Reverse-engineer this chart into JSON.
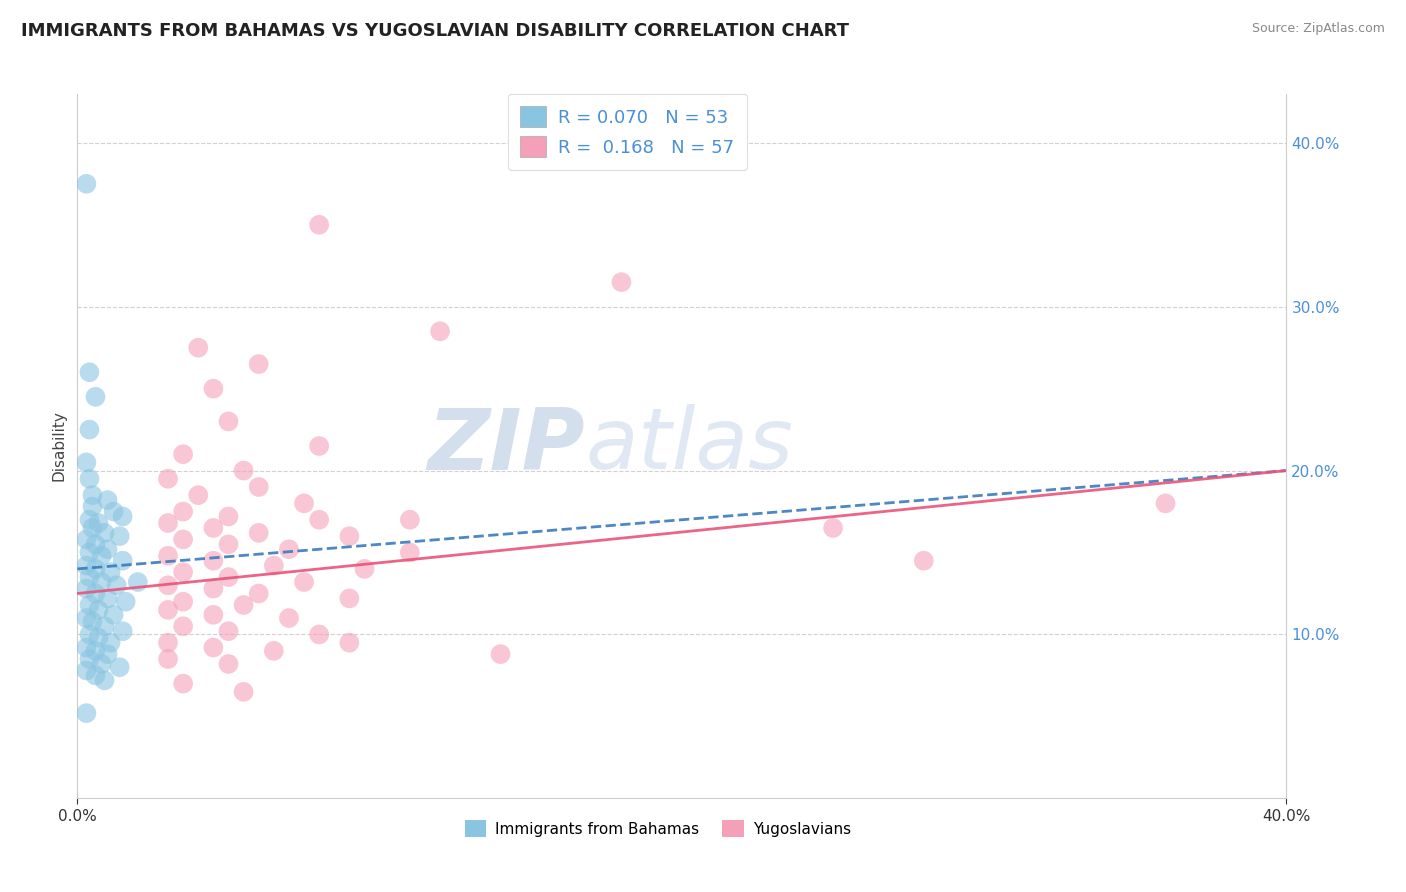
{
  "title": "IMMIGRANTS FROM BAHAMAS VS YUGOSLAVIAN DISABILITY CORRELATION CHART",
  "source": "Source: ZipAtlas.com",
  "ylabel": "Disability",
  "r1": 0.07,
  "n1": 53,
  "r2": 0.168,
  "n2": 57,
  "color_blue": "#89c4e1",
  "color_pink": "#f4a0b8",
  "color_blue_line": "#3a7abf",
  "color_pink_line": "#e8547a",
  "legend_label1": "Immigrants from Bahamas",
  "legend_label2": "Yugoslavians",
  "watermark_zip": "ZIP",
  "watermark_atlas": "atlas",
  "blue_dots": [
    [
      0.3,
      37.5
    ],
    [
      0.4,
      26.0
    ],
    [
      0.6,
      24.5
    ],
    [
      0.4,
      22.5
    ],
    [
      0.3,
      20.5
    ],
    [
      0.4,
      19.5
    ],
    [
      0.5,
      18.5
    ],
    [
      1.0,
      18.2
    ],
    [
      0.5,
      17.8
    ],
    [
      1.2,
      17.5
    ],
    [
      1.5,
      17.2
    ],
    [
      0.4,
      17.0
    ],
    [
      0.7,
      16.8
    ],
    [
      0.5,
      16.5
    ],
    [
      0.9,
      16.2
    ],
    [
      1.4,
      16.0
    ],
    [
      0.3,
      15.8
    ],
    [
      0.6,
      15.5
    ],
    [
      1.0,
      15.2
    ],
    [
      0.4,
      15.0
    ],
    [
      0.8,
      14.8
    ],
    [
      1.5,
      14.5
    ],
    [
      0.3,
      14.2
    ],
    [
      0.6,
      14.0
    ],
    [
      1.1,
      13.8
    ],
    [
      0.4,
      13.5
    ],
    [
      0.8,
      13.2
    ],
    [
      1.3,
      13.0
    ],
    [
      2.0,
      13.2
    ],
    [
      0.3,
      12.8
    ],
    [
      0.6,
      12.5
    ],
    [
      1.0,
      12.2
    ],
    [
      1.6,
      12.0
    ],
    [
      0.4,
      11.8
    ],
    [
      0.7,
      11.5
    ],
    [
      1.2,
      11.2
    ],
    [
      0.3,
      11.0
    ],
    [
      0.5,
      10.8
    ],
    [
      0.9,
      10.5
    ],
    [
      1.5,
      10.2
    ],
    [
      0.4,
      10.0
    ],
    [
      0.7,
      9.8
    ],
    [
      1.1,
      9.5
    ],
    [
      0.3,
      9.2
    ],
    [
      0.6,
      9.0
    ],
    [
      1.0,
      8.8
    ],
    [
      0.4,
      8.5
    ],
    [
      0.8,
      8.2
    ],
    [
      1.4,
      8.0
    ],
    [
      0.3,
      7.8
    ],
    [
      0.6,
      7.5
    ],
    [
      0.9,
      7.2
    ],
    [
      0.3,
      5.2
    ]
  ],
  "pink_dots": [
    [
      8.0,
      35.0
    ],
    [
      12.0,
      28.5
    ],
    [
      18.0,
      31.5
    ],
    [
      4.0,
      27.5
    ],
    [
      6.0,
      26.5
    ],
    [
      4.5,
      25.0
    ],
    [
      5.0,
      23.0
    ],
    [
      8.0,
      21.5
    ],
    [
      3.5,
      21.0
    ],
    [
      5.5,
      20.0
    ],
    [
      3.0,
      19.5
    ],
    [
      6.0,
      19.0
    ],
    [
      4.0,
      18.5
    ],
    [
      7.5,
      18.0
    ],
    [
      3.5,
      17.5
    ],
    [
      5.0,
      17.2
    ],
    [
      8.0,
      17.0
    ],
    [
      11.0,
      17.0
    ],
    [
      3.0,
      16.8
    ],
    [
      4.5,
      16.5
    ],
    [
      6.0,
      16.2
    ],
    [
      9.0,
      16.0
    ],
    [
      3.5,
      15.8
    ],
    [
      5.0,
      15.5
    ],
    [
      7.0,
      15.2
    ],
    [
      11.0,
      15.0
    ],
    [
      3.0,
      14.8
    ],
    [
      4.5,
      14.5
    ],
    [
      6.5,
      14.2
    ],
    [
      9.5,
      14.0
    ],
    [
      3.5,
      13.8
    ],
    [
      5.0,
      13.5
    ],
    [
      7.5,
      13.2
    ],
    [
      3.0,
      13.0
    ],
    [
      4.5,
      12.8
    ],
    [
      6.0,
      12.5
    ],
    [
      9.0,
      12.2
    ],
    [
      3.5,
      12.0
    ],
    [
      5.5,
      11.8
    ],
    [
      3.0,
      11.5
    ],
    [
      4.5,
      11.2
    ],
    [
      7.0,
      11.0
    ],
    [
      3.5,
      10.5
    ],
    [
      5.0,
      10.2
    ],
    [
      8.0,
      10.0
    ],
    [
      3.0,
      9.5
    ],
    [
      4.5,
      9.2
    ],
    [
      6.5,
      9.0
    ],
    [
      14.0,
      8.8
    ],
    [
      25.0,
      16.5
    ],
    [
      28.0,
      14.5
    ],
    [
      36.0,
      18.0
    ],
    [
      3.0,
      8.5
    ],
    [
      5.0,
      8.2
    ],
    [
      3.5,
      7.0
    ],
    [
      5.5,
      6.5
    ],
    [
      9.0,
      9.5
    ]
  ],
  "blue_line": [
    0.0,
    14.0,
    40.0,
    20.0
  ],
  "pink_line": [
    0.0,
    12.5,
    40.0,
    20.0
  ],
  "xlim": [
    0,
    40
  ],
  "ylim": [
    0,
    43
  ],
  "yticks": [
    10,
    20,
    30,
    40
  ],
  "xticks": [
    0,
    40
  ]
}
